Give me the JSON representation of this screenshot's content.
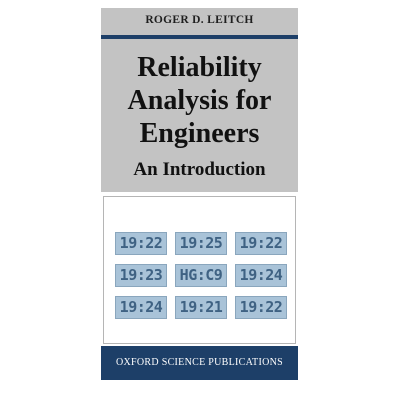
{
  "cover": {
    "author": "ROGER D. LEITCH",
    "title_lines": [
      "Reliability",
      "Analysis for",
      "Engineers"
    ],
    "subtitle": "An Introduction",
    "displays": [
      [
        "19:22",
        "19:25",
        "19:22"
      ],
      [
        "19:23",
        "HG:C9",
        "19:24"
      ],
      [
        "19:24",
        "19:21",
        "19:22"
      ]
    ],
    "publisher": "OXFORD SCIENCE PUBLICATIONS"
  }
}
